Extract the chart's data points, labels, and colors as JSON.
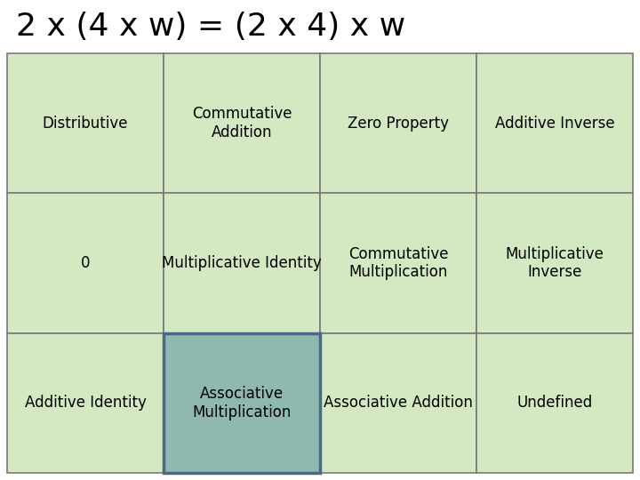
{
  "title": "2 x (4 x w) = (2 x 4) x w",
  "title_fontsize": 26,
  "title_fontweight": "normal",
  "title_color": "#000000",
  "background_color": "#ffffff",
  "cell_bg_color": "#d4e8c2",
  "cell_bg_color_highlight": "#8fb8b0",
  "cell_border_color": "#7a7a7a",
  "cell_border_color_highlight": "#4a6888",
  "grid": [
    [
      "Distributive",
      "Commutative\nAddition",
      "Zero Property",
      "Additive Inverse"
    ],
    [
      "0",
      "Multiplicative Identity",
      "Commutative\nMultiplication",
      "Multiplicative\nInverse"
    ],
    [
      "Additive Identity",
      "Associative\nMultiplication",
      "Associative Addition",
      "Undefined"
    ]
  ],
  "highlight_cell": [
    2,
    1
  ],
  "cell_fontsize": 12,
  "rows": 3,
  "cols": 4
}
